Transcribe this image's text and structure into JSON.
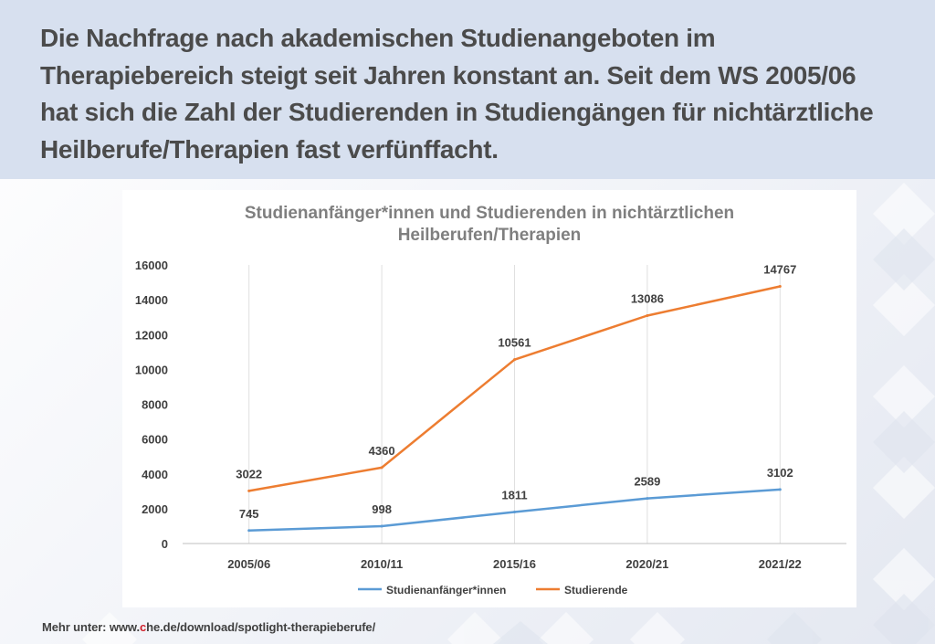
{
  "header": {
    "lines": [
      "Die Nachfrage nach akademischen Studienangeboten im",
      "Therapiebereich steigt seit Jahren konstant an. Seit dem WS 2005/06",
      "hat sich die Zahl der Studierenden in Studiengängen für nichtärztliche",
      "Heilberufe/Therapien fast verfünffacht."
    ]
  },
  "chart_data": {
    "type": "line",
    "title_lines": [
      "Studienanfänger*innen und Studierenden in nichtärztlichen",
      "Heilberufen/Therapien"
    ],
    "categories": [
      "2005/06",
      "2010/11",
      "2015/16",
      "2020/21",
      "2021/22"
    ],
    "series": [
      {
        "name": "Studienanfänger*innen",
        "color": "#5b9bd5",
        "values": [
          745,
          998,
          1811,
          2589,
          3102
        ]
      },
      {
        "name": "Studierende",
        "color": "#ed7d31",
        "values": [
          3022,
          4360,
          10561,
          13086,
          14767
        ]
      }
    ],
    "ylim": [
      0,
      16000
    ],
    "yticks": [
      0,
      2000,
      4000,
      6000,
      8000,
      10000,
      12000,
      14000,
      16000
    ],
    "xlabel": "",
    "ylabel": "",
    "legend_position": "bottom",
    "grid": "vertical"
  },
  "footer": {
    "prefix": "Mehr unter: www.",
    "accent": "c",
    "suffix": "he.de/download/spotlight-therapieberufe/"
  }
}
